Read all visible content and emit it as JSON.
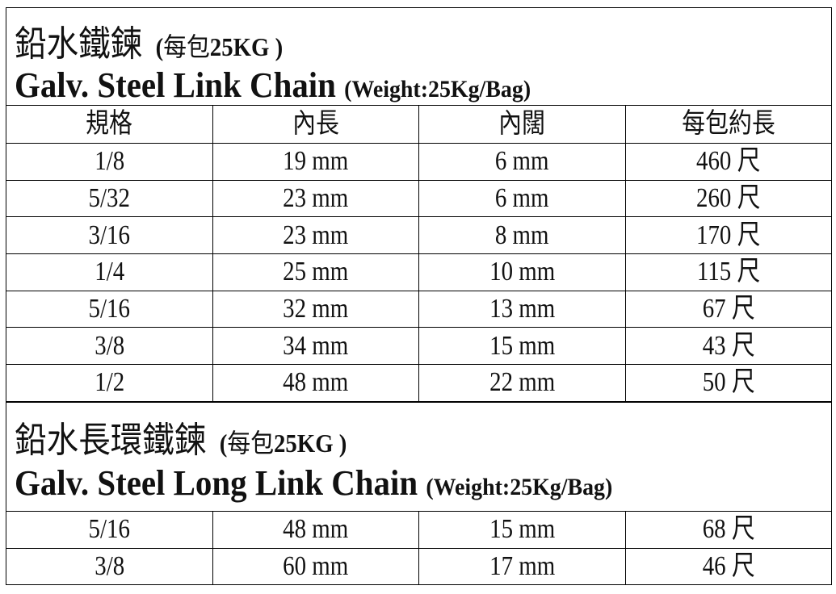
{
  "sections": [
    {
      "title_zh": "鉛水鐵鍊",
      "title_zh_sub_open": "(",
      "title_zh_sub_zh": "每包",
      "title_zh_sub_rest": "25KG )",
      "title_en": "Galv. Steel Link Chain",
      "title_en_sub": "(Weight:25Kg/Bag)",
      "headers": [
        "規格",
        "內長",
        "內闊",
        "每包約長"
      ],
      "rows": [
        [
          "1/8",
          "19 mm",
          "6 mm",
          "460 尺"
        ],
        [
          "5/32",
          "23 mm",
          "6 mm",
          "260  尺"
        ],
        [
          "3/16",
          "23 mm",
          "8 mm",
          "170  尺"
        ],
        [
          "1/4",
          "25 mm",
          "10 mm",
          "115  尺"
        ],
        [
          "5/16",
          "32 mm",
          "13 mm",
          "67  尺"
        ],
        [
          "3/8",
          "34 mm",
          "15 mm",
          "43  尺"
        ],
        [
          "1/2",
          "48 mm",
          "22 mm",
          "50  尺"
        ]
      ]
    },
    {
      "title_zh": "鉛水長環鐵鍊",
      "title_zh_sub_open": "(",
      "title_zh_sub_zh": "每包",
      "title_zh_sub_rest": "25KG )",
      "title_en": "Galv. Steel Long Link Chain",
      "title_en_sub": "(Weight:25Kg/Bag)",
      "rows": [
        [
          "5/16",
          "48 mm",
          "15 mm",
          "68  尺"
        ],
        [
          "3/8",
          "60 mm",
          "17 mm",
          "46  尺"
        ]
      ]
    }
  ]
}
